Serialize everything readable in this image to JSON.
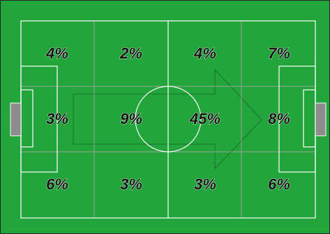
{
  "pitch": {
    "grass_color": "#22a63c",
    "line_color": "#ffffff",
    "grid_color": "#9aa19a",
    "border_color": "#222222",
    "goal_color": "#8c8c8c",
    "arrow_outline_color": "#1e6e2a",
    "attack_direction": "left-to-right"
  },
  "zones": {
    "columns": 4,
    "rows": 3,
    "values": [
      [
        "4%",
        "2%",
        "4%",
        "7%"
      ],
      [
        "3%",
        "9%",
        "45%",
        "8%"
      ],
      [
        "6%",
        "3%",
        "3%",
        "6%"
      ]
    ]
  }
}
